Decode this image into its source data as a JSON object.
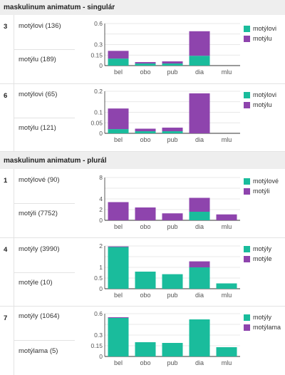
{
  "colors": {
    "a": "#1abc9c",
    "b": "#8e44ad",
    "axis": "#333333",
    "grid": "#e0e0e0",
    "text": "#555555"
  },
  "sections": [
    {
      "title": "maskulinum animatum - singulár"
    },
    {
      "title": "maskulinum animatum - plurál"
    }
  ],
  "rows": [
    {
      "num": "3",
      "form_a": "motýlovi (136)",
      "form_b": "motýlu (189)",
      "legend": [
        "motýlovi",
        "motýlu"
      ],
      "chart_data": {
        "type": "bar",
        "categories": [
          "bel",
          "obo",
          "pub",
          "dia",
          "mlu"
        ],
        "ylim": [
          0,
          0.6
        ],
        "yticks": [
          "0",
          "0.15",
          "0.3",
          "",
          "0.6"
        ],
        "series": [
          {
            "name": "motýlovi",
            "values": [
              0.1,
              0.03,
              0.03,
              0.14,
              0
            ]
          },
          {
            "name": "motýlu",
            "values": [
              0.11,
              0.02,
              0.03,
              0.35,
              0
            ]
          }
        ]
      }
    },
    {
      "num": "6",
      "form_a": "motýlovi (65)",
      "form_b": "motýlu (121)",
      "legend": [
        "motýlovi",
        "motýlu"
      ],
      "chart_data": {
        "type": "bar",
        "categories": [
          "bel",
          "obo",
          "pub",
          "dia",
          "mlu"
        ],
        "ylim": [
          0,
          0.2
        ],
        "yticks": [
          "0",
          "0.05",
          "0.1",
          "",
          "0.2"
        ],
        "series": [
          {
            "name": "motýlovi",
            "values": [
              0.02,
              0.01,
              0.01,
              0,
              0
            ]
          },
          {
            "name": "motýlu",
            "values": [
              0.098,
              0.012,
              0.017,
              0.19,
              0
            ]
          }
        ]
      }
    },
    {
      "num": "1",
      "form_a": "motýlové (90)",
      "form_b": "motýli (7752)",
      "legend": [
        "motýlové",
        "motýli"
      ],
      "chart_data": {
        "type": "bar",
        "categories": [
          "bel",
          "obo",
          "pub",
          "dia",
          "mlu"
        ],
        "ylim": [
          0,
          8
        ],
        "yticks": [
          "0",
          "2",
          "4",
          "",
          "8"
        ],
        "series": [
          {
            "name": "motýlové",
            "values": [
              0,
              0,
              0,
              1.6,
              0
            ]
          },
          {
            "name": "motýli",
            "values": [
              3.4,
              2.4,
              1.3,
              2.6,
              1.1
            ]
          }
        ]
      }
    },
    {
      "num": "4",
      "form_a": "motýly (3990)",
      "form_b": "motýle (10)",
      "legend": [
        "motýly",
        "motýle"
      ],
      "chart_data": {
        "type": "bar",
        "categories": [
          "bel",
          "obo",
          "pub",
          "dia",
          "mlu"
        ],
        "ylim": [
          0,
          2
        ],
        "yticks": [
          "0",
          "0.5",
          "1",
          "",
          "2"
        ],
        "series": [
          {
            "name": "motýly",
            "values": [
              1.95,
              0.8,
              0.68,
              1.0,
              0.25
            ]
          },
          {
            "name": "motýle",
            "values": [
              0.03,
              0,
              0,
              0.28,
              0
            ]
          }
        ]
      }
    },
    {
      "num": "7",
      "form_a": "motýly (1064)",
      "form_b": "motýlama (5)",
      "legend": [
        "motýly",
        "motýlama"
      ],
      "chart_data": {
        "type": "bar",
        "categories": [
          "bel",
          "obo",
          "pub",
          "dia",
          "mlu"
        ],
        "ylim": [
          0,
          0.6
        ],
        "yticks": [
          "0",
          "0.15",
          "0.3",
          "",
          "0.6"
        ],
        "series": [
          {
            "name": "motýly",
            "values": [
              0.54,
              0.2,
              0.19,
              0.52,
              0.13
            ]
          },
          {
            "name": "motýlama",
            "values": [
              0.01,
              0,
              0,
              0,
              0
            ]
          }
        ]
      }
    }
  ]
}
